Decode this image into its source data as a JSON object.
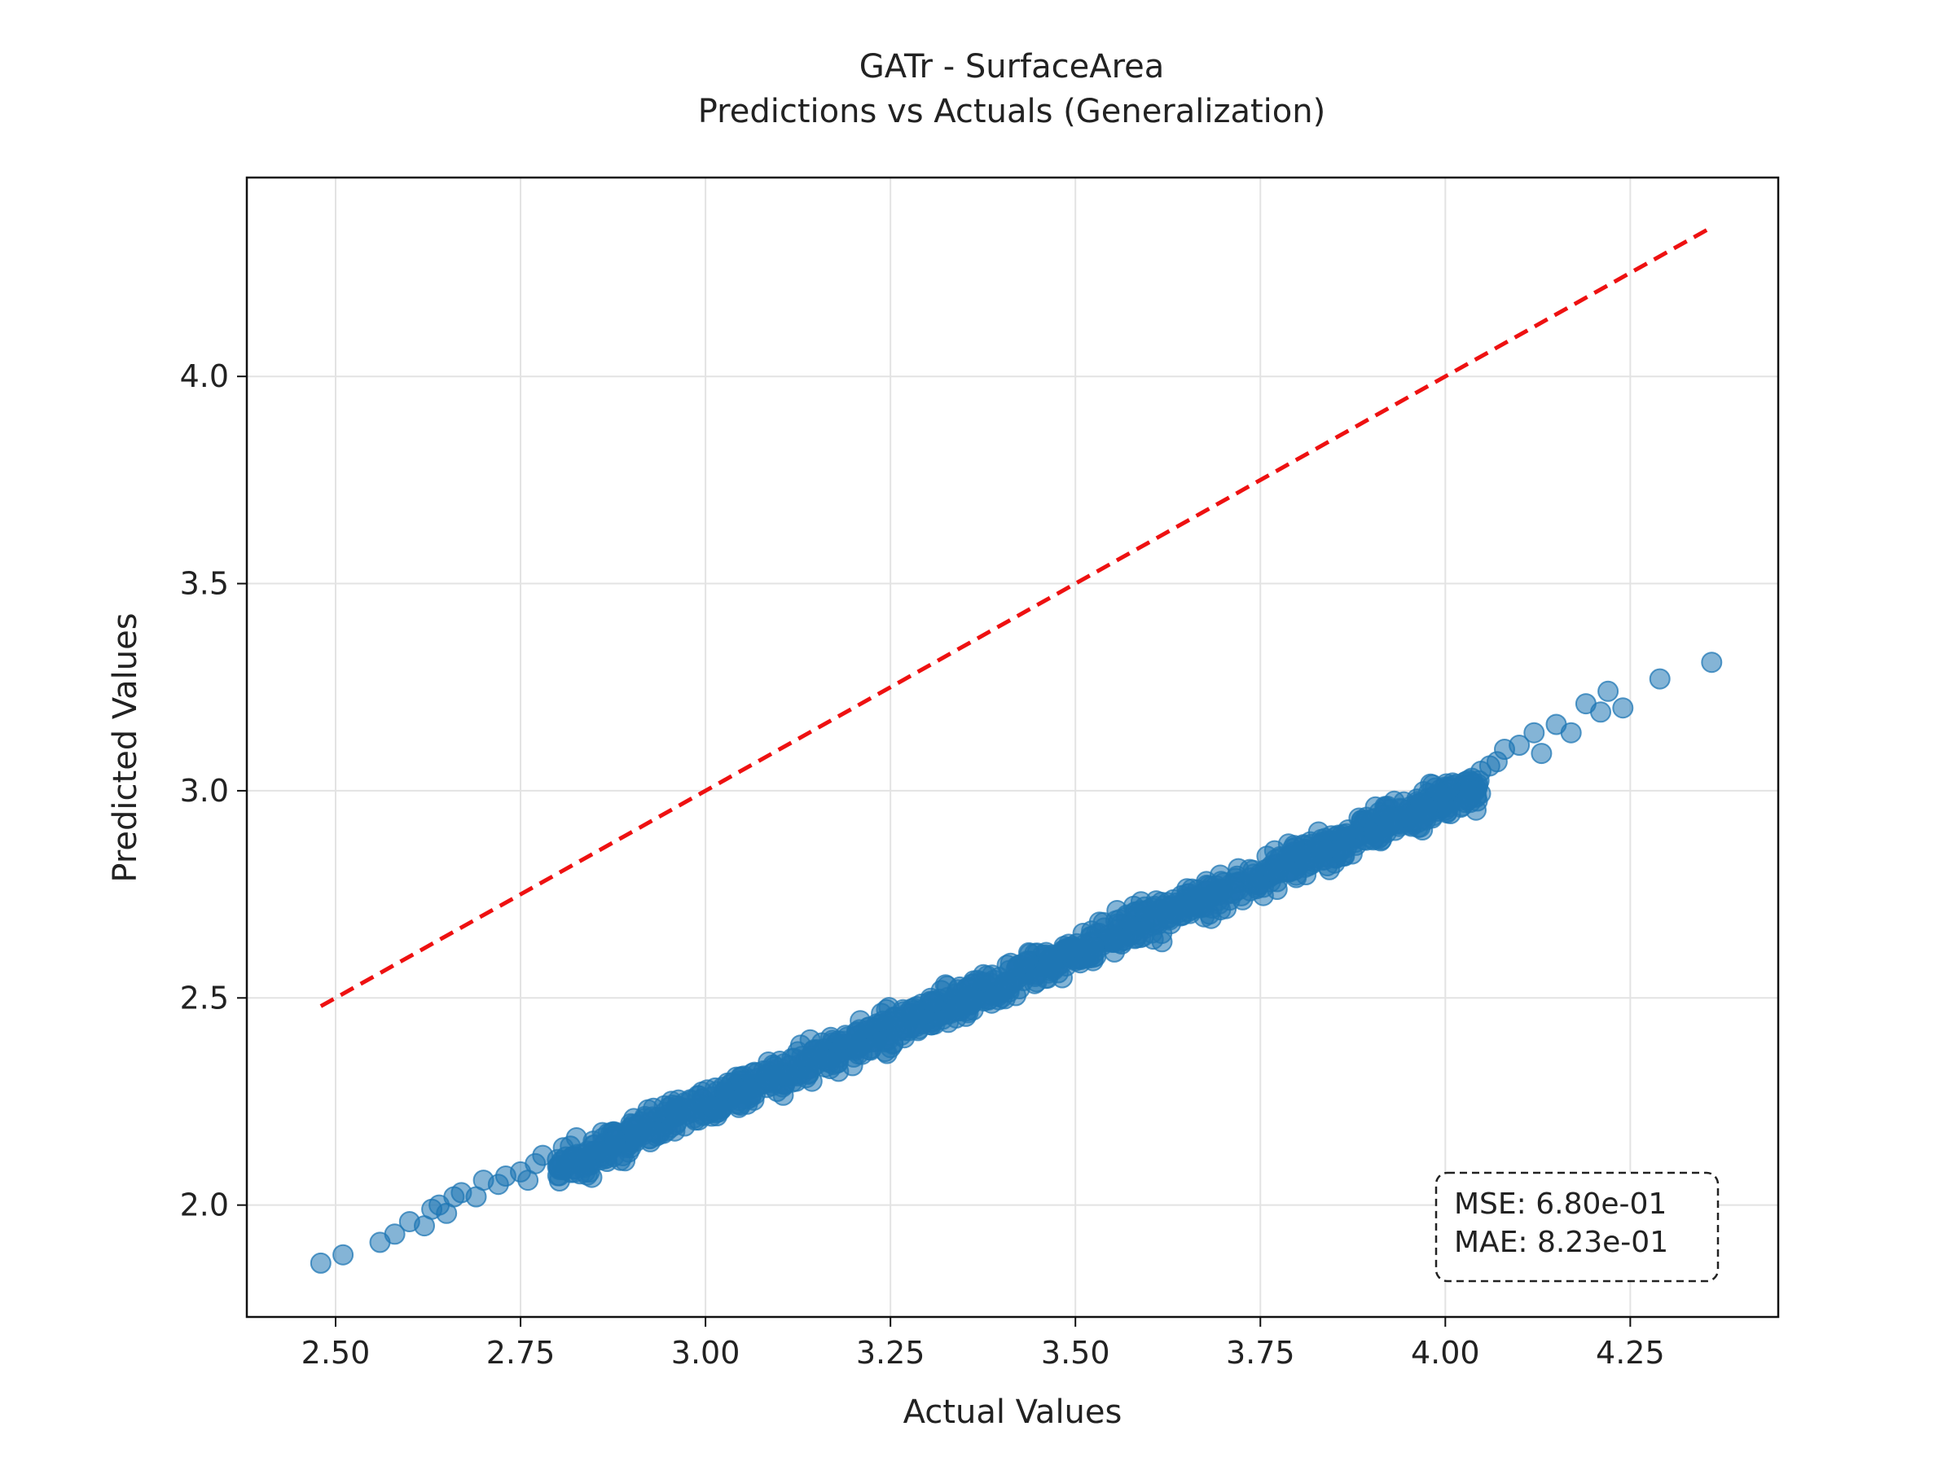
{
  "chart_data": {
    "type": "scatter",
    "title": "GATr - SurfaceArea",
    "subtitle": "Predictions vs Actuals (Generalization)",
    "xlabel": "Actual Values",
    "ylabel": "Predicted Values",
    "xlim": [
      2.38,
      4.45
    ],
    "ylim": [
      1.73,
      4.48
    ],
    "xticks": [
      2.5,
      2.75,
      3.0,
      3.25,
      3.5,
      3.75,
      4.0,
      4.25
    ],
    "xtick_labels": [
      "2.50",
      "2.75",
      "3.00",
      "3.25",
      "3.50",
      "3.75",
      "4.00",
      "4.25"
    ],
    "yticks": [
      2.0,
      2.5,
      3.0,
      3.5,
      4.0
    ],
    "ytick_labels": [
      "2.0",
      "2.5",
      "3.0",
      "3.5",
      "4.0"
    ],
    "grid": true,
    "point_color": "#1f77b4",
    "point_alpha": 0.55,
    "reference_line": {
      "style": "dashed",
      "color": "#ee1111",
      "x": [
        2.48,
        4.36
      ],
      "y": [
        2.48,
        4.36
      ]
    },
    "series": [
      {
        "points": [
          [
            2.48,
            1.86
          ],
          [
            2.51,
            1.88
          ],
          [
            2.56,
            1.91
          ],
          [
            2.58,
            1.93
          ],
          [
            2.6,
            1.96
          ],
          [
            2.62,
            1.95
          ],
          [
            2.63,
            1.99
          ],
          [
            2.64,
            2.0
          ],
          [
            2.65,
            1.98
          ],
          [
            2.66,
            2.02
          ],
          [
            2.67,
            2.03
          ],
          [
            2.69,
            2.02
          ],
          [
            2.7,
            2.06
          ],
          [
            2.72,
            2.05
          ],
          [
            2.73,
            2.07
          ],
          [
            2.75,
            2.08
          ],
          [
            2.76,
            2.06
          ],
          [
            2.77,
            2.1
          ],
          [
            2.78,
            2.12
          ],
          [
            2.8,
            2.11
          ],
          [
            4.06,
            3.06
          ],
          [
            4.07,
            3.07
          ],
          [
            4.08,
            3.1
          ],
          [
            4.1,
            3.11
          ],
          [
            4.12,
            3.14
          ],
          [
            4.13,
            3.09
          ],
          [
            4.15,
            3.16
          ],
          [
            4.17,
            3.14
          ],
          [
            4.19,
            3.21
          ],
          [
            4.21,
            3.19
          ],
          [
            4.22,
            3.24
          ],
          [
            4.24,
            3.2
          ],
          [
            4.29,
            3.27
          ],
          [
            4.36,
            3.31
          ]
        ],
        "dense_band": {
          "x_range": [
            2.8,
            4.05
          ],
          "fit_intercept": 0.02,
          "fit_slope": 0.74,
          "spread": 0.03
        }
      }
    ],
    "stats": {
      "mse_label": "MSE: 6.80e-01",
      "mae_label": "MAE: 8.23e-01",
      "placement": "bottom-right"
    }
  }
}
